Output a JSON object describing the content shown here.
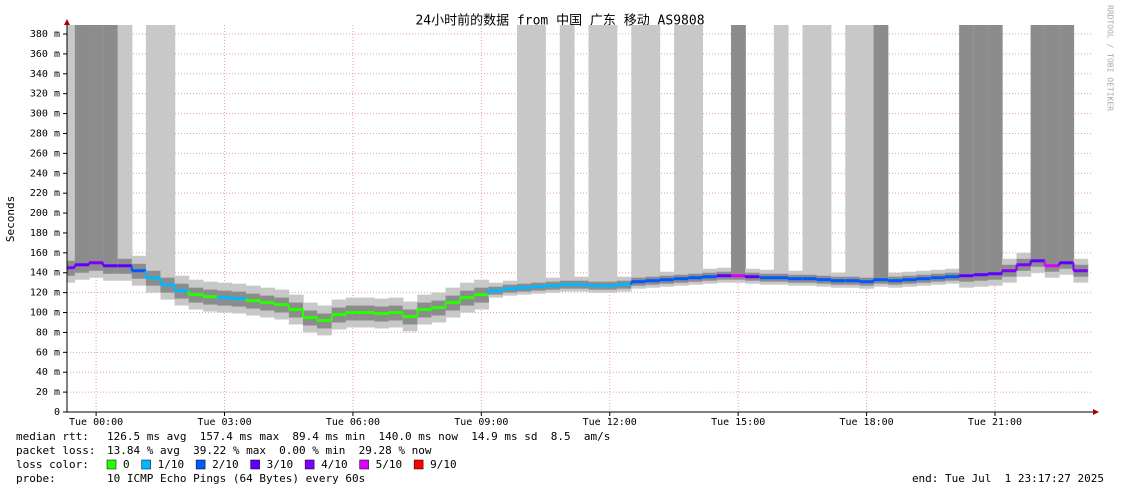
{
  "chart_data": {
    "type": "smokeping",
    "title": "24小时前的数据 from 中国 广东 移动 AS9808",
    "y_label": "Seconds",
    "watermark": "RRDTOOL / TOBI OETIKER",
    "xlim": [
      -0.68,
      23.29
    ],
    "xticks": [
      {
        "value": 0,
        "label": "Tue 00:00"
      },
      {
        "value": 3,
        "label": "Tue 03:00"
      },
      {
        "value": 6,
        "label": "Tue 06:00"
      },
      {
        "value": 9,
        "label": "Tue 09:00"
      },
      {
        "value": 12,
        "label": "Tue 12:00"
      },
      {
        "value": 15,
        "label": "Tue 15:00"
      },
      {
        "value": 18,
        "label": "Tue 18:00"
      },
      {
        "value": 21,
        "label": "Tue 21:00"
      }
    ],
    "ylim": [
      0,
      380
    ],
    "yticks": [
      0,
      {
        "value": 20,
        "label": "20 m"
      },
      {
        "value": 40,
        "label": "40 m"
      },
      {
        "value": 60,
        "label": "60 m"
      },
      {
        "value": 80,
        "label": "80 m"
      },
      {
        "value": 100,
        "label": "100 m"
      },
      {
        "value": 120,
        "label": "120 m"
      },
      {
        "value": 140,
        "label": "140 m"
      },
      {
        "value": 160,
        "label": "160 m"
      },
      {
        "value": 180,
        "label": "180 m"
      },
      {
        "value": 200,
        "label": "200 m"
      },
      {
        "value": 220,
        "label": "220 m"
      },
      {
        "value": 240,
        "label": "240 m"
      },
      {
        "value": 260,
        "label": "260 m"
      },
      {
        "value": 280,
        "label": "280 m"
      },
      {
        "value": 300,
        "label": "300 m"
      },
      {
        "value": 320,
        "label": "320 m"
      },
      {
        "value": 340,
        "label": "340 m"
      },
      {
        "value": 360,
        "label": "360 m"
      },
      {
        "value": 380,
        "label": "380 m"
      }
    ],
    "grid": true,
    "grid_color": "#e8a0a0",
    "outer_color": "#c8c8c8",
    "inner_color": "#8c8c8c",
    "x": [
      -0.67,
      -0.33,
      0,
      0.33,
      0.67,
      1,
      1.33,
      1.67,
      2,
      2.33,
      2.67,
      3,
      3.33,
      3.67,
      4,
      4.33,
      4.67,
      5,
      5.33,
      5.67,
      6,
      6.33,
      6.67,
      7,
      7.33,
      7.67,
      8,
      8.33,
      8.67,
      9,
      9.33,
      9.67,
      10,
      10.33,
      10.67,
      11,
      11.33,
      11.67,
      12,
      12.33,
      12.67,
      13,
      13.33,
      13.67,
      14,
      14.33,
      14.67,
      15,
      15.33,
      15.67,
      16,
      16.33,
      16.67,
      17,
      17.33,
      17.67,
      18,
      18.33,
      18.67,
      19,
      19.33,
      19.67,
      20,
      20.33,
      20.67,
      21,
      21.33,
      21.67,
      22,
      22.33,
      22.67,
      23
    ],
    "median": [
      145,
      148,
      150,
      147,
      147,
      142,
      135,
      128,
      122,
      118,
      116,
      115,
      114,
      112,
      110,
      108,
      103,
      95,
      92,
      98,
      100,
      100,
      99,
      100,
      96,
      103,
      105,
      110,
      115,
      118,
      122,
      124,
      125,
      126,
      127,
      128,
      128,
      127,
      127,
      128,
      131,
      132,
      133,
      134,
      135,
      136,
      137,
      137,
      136,
      135,
      135,
      134,
      134,
      133,
      132,
      132,
      131,
      133,
      132,
      133,
      134,
      135,
      136,
      137,
      138,
      139,
      142,
      148,
      152,
      147,
      150,
      142
    ],
    "loss": [
      0.4,
      0.3,
      0.4,
      0.3,
      0.3,
      0.2,
      0.1,
      0.1,
      0.1,
      0,
      0,
      0.1,
      0.1,
      0,
      0,
      0,
      0,
      0,
      0,
      0,
      0,
      0,
      0,
      0,
      0,
      0,
      0,
      0,
      0,
      0,
      0.1,
      0.1,
      0.1,
      0.1,
      0.1,
      0.1,
      0.1,
      0.1,
      0.1,
      0.1,
      0.2,
      0.2,
      0.2,
      0.2,
      0.2,
      0.2,
      0.3,
      0.5,
      0.3,
      0.2,
      0.2,
      0.2,
      0.2,
      0.2,
      0.2,
      0.2,
      0.2,
      0.2,
      0.2,
      0.2,
      0.2,
      0.2,
      0.2,
      0.3,
      0.3,
      0.3,
      0.4,
      0.4,
      0.3,
      0.5,
      0.3,
      0.4
    ],
    "smoke_outer_min": [
      130,
      133,
      135,
      132,
      132,
      127,
      120,
      113,
      107,
      103,
      101,
      100,
      99,
      97,
      95,
      93,
      88,
      80,
      77,
      83,
      85,
      85,
      84,
      85,
      81,
      88,
      90,
      95,
      100,
      103,
      115,
      117,
      118,
      119,
      120,
      121,
      121,
      120,
      120,
      121,
      124,
      125,
      126,
      127,
      128,
      129,
      130,
      130,
      129,
      128,
      128,
      127,
      127,
      126,
      125,
      125,
      124,
      126,
      125,
      126,
      127,
      128,
      129,
      125,
      126,
      127,
      130,
      136,
      140,
      135,
      138,
      130
    ],
    "smoke_outer_max": [
      400,
      400,
      400,
      400,
      400,
      157,
      400,
      400,
      137,
      133,
      131,
      130,
      129,
      127,
      125,
      123,
      118,
      110,
      107,
      113,
      115,
      115,
      114,
      115,
      111,
      118,
      120,
      125,
      130,
      133,
      130,
      132,
      400,
      400,
      135,
      400,
      136,
      400,
      400,
      136,
      400,
      400,
      141,
      400,
      400,
      144,
      145,
      400,
      144,
      143,
      400,
      142,
      400,
      400,
      140,
      400,
      400,
      400,
      140,
      141,
      142,
      143,
      144,
      400,
      400,
      400,
      154,
      160,
      400,
      400,
      400,
      154
    ],
    "smoke_inner_min": [
      137,
      140,
      142,
      139,
      139,
      134,
      127,
      120,
      114,
      110,
      108,
      107,
      106,
      104,
      102,
      100,
      95,
      87,
      84,
      90,
      92,
      92,
      91,
      92,
      88,
      95,
      97,
      102,
      107,
      110,
      118,
      120,
      121,
      122,
      123,
      124,
      124,
      123,
      123,
      124,
      127,
      128,
      129,
      130,
      131,
      132,
      133,
      133,
      132,
      131,
      131,
      130,
      130,
      129,
      128,
      128,
      127,
      129,
      128,
      129,
      130,
      131,
      132,
      131,
      132,
      133,
      136,
      142,
      146,
      141,
      144,
      136
    ],
    "smoke_inner_max": [
      152,
      400,
      400,
      400,
      154,
      149,
      142,
      135,
      129,
      125,
      123,
      122,
      121,
      119,
      117,
      115,
      110,
      102,
      99,
      105,
      107,
      107,
      106,
      107,
      103,
      110,
      112,
      117,
      122,
      125,
      126,
      128,
      129,
      130,
      131,
      132,
      132,
      131,
      131,
      132,
      135,
      136,
      137,
      138,
      139,
      140,
      141,
      400,
      140,
      139,
      139,
      138,
      138,
      137,
      136,
      136,
      135,
      400,
      136,
      137,
      138,
      139,
      140,
      400,
      400,
      400,
      148,
      154,
      400,
      400,
      400,
      148
    ],
    "loss_legend": {
      "label": "loss color:",
      "items": [
        {
          "value": 0,
          "label": "0",
          "color": "#26ff00"
        },
        {
          "value": 0.1,
          "label": "1/10",
          "color": "#00b8ff"
        },
        {
          "value": 0.2,
          "label": "2/10",
          "color": "#0059ff"
        },
        {
          "value": 0.3,
          "label": "3/10",
          "color": "#5e00ff"
        },
        {
          "value": 0.4,
          "label": "4/10",
          "color": "#7e00ff"
        },
        {
          "value": 0.5,
          "label": "5/10",
          "color": "#dd00ff"
        },
        {
          "value": 0.9,
          "label": "9/10",
          "color": "#ff0000"
        }
      ]
    },
    "stats": [
      {
        "label": "median rtt:",
        "text": "126.5 ms avg  157.4 ms max  89.4 ms min  140.0 ms now  14.9 ms sd  8.5  am/s"
      },
      {
        "label": "packet loss:",
        "text": "13.84 % avg  39.22 % max  0.00 % min  29.28 % now"
      }
    ],
    "probe": {
      "label": "probe:",
      "text": "10 ICMP Echo Pings (64 Bytes) every 60s"
    },
    "end": "end: Tue Jul  1 23:17:27 2025"
  }
}
